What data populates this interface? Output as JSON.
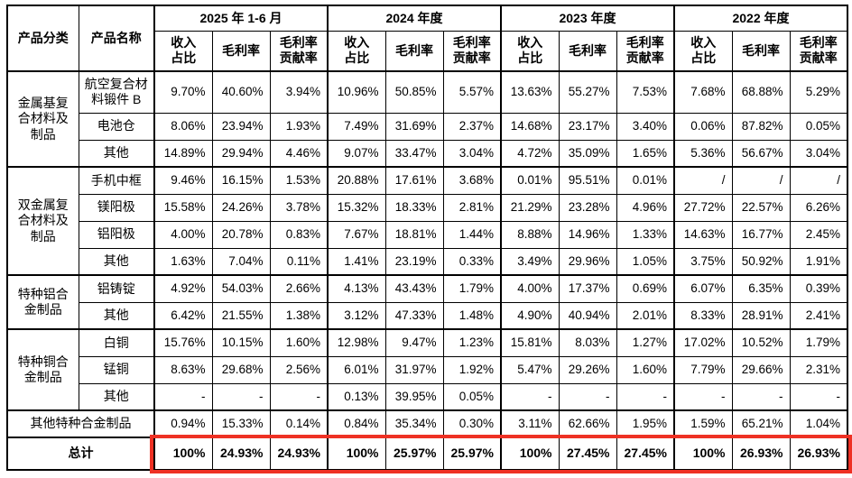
{
  "table": {
    "corner": {
      "category": "产品分类",
      "product": "产品名称"
    },
    "periods": [
      "2025 年 1-6 月",
      "2024 年度",
      "2023 年度",
      "2022 年度"
    ],
    "metrics": [
      "收入\n占比",
      "毛利率",
      "毛利率\n贡献率"
    ],
    "groups": [
      {
        "category": "金属基复\n合材料及\n制品",
        "rows": [
          {
            "name": "航空复合材\n料锻件 B",
            "values": [
              "9.70%",
              "40.60%",
              "3.94%",
              "10.96%",
              "50.85%",
              "5.57%",
              "13.63%",
              "55.27%",
              "7.53%",
              "7.68%",
              "68.88%",
              "5.29%"
            ]
          },
          {
            "name": "电池仓",
            "values": [
              "8.06%",
              "23.94%",
              "1.93%",
              "7.49%",
              "31.69%",
              "2.37%",
              "14.68%",
              "23.17%",
              "3.40%",
              "0.06%",
              "87.82%",
              "0.05%"
            ]
          },
          {
            "name": "其他",
            "values": [
              "14.89%",
              "29.94%",
              "4.46%",
              "9.07%",
              "33.47%",
              "3.04%",
              "4.72%",
              "35.09%",
              "1.65%",
              "5.36%",
              "56.67%",
              "3.04%"
            ]
          }
        ]
      },
      {
        "category": "双金属复\n合材料及\n制品",
        "rows": [
          {
            "name": "手机中框",
            "values": [
              "9.46%",
              "16.15%",
              "1.53%",
              "20.88%",
              "17.61%",
              "3.68%",
              "0.01%",
              "95.51%",
              "0.01%",
              "/",
              "/",
              "/"
            ]
          },
          {
            "name": "镁阳极",
            "values": [
              "15.58%",
              "24.26%",
              "3.78%",
              "15.32%",
              "18.33%",
              "2.81%",
              "21.29%",
              "23.28%",
              "4.96%",
              "27.72%",
              "22.57%",
              "6.26%"
            ]
          },
          {
            "name": "铝阳极",
            "values": [
              "4.00%",
              "20.78%",
              "0.83%",
              "7.67%",
              "18.81%",
              "1.44%",
              "8.88%",
              "14.96%",
              "1.33%",
              "14.63%",
              "16.77%",
              "2.45%"
            ]
          },
          {
            "name": "其他",
            "values": [
              "1.63%",
              "7.04%",
              "0.11%",
              "1.41%",
              "23.19%",
              "0.33%",
              "3.49%",
              "29.96%",
              "1.05%",
              "3.75%",
              "50.92%",
              "1.91%"
            ]
          }
        ]
      },
      {
        "category": "特种铝合\n金制品",
        "rows": [
          {
            "name": "铝铸锭",
            "values": [
              "4.92%",
              "54.03%",
              "2.66%",
              "4.13%",
              "43.43%",
              "1.79%",
              "4.00%",
              "17.37%",
              "0.69%",
              "6.07%",
              "6.35%",
              "0.39%"
            ]
          },
          {
            "name": "其他",
            "values": [
              "6.42%",
              "21.55%",
              "1.38%",
              "3.12%",
              "47.33%",
              "1.48%",
              "4.90%",
              "40.94%",
              "2.01%",
              "8.33%",
              "28.91%",
              "2.41%"
            ]
          }
        ]
      },
      {
        "category": "特种铜合\n金制品",
        "rows": [
          {
            "name": "白铜",
            "values": [
              "15.76%",
              "10.15%",
              "1.60%",
              "12.98%",
              "9.47%",
              "1.23%",
              "15.81%",
              "8.03%",
              "1.27%",
              "17.02%",
              "10.52%",
              "1.79%"
            ]
          },
          {
            "name": "锰铜",
            "values": [
              "8.63%",
              "29.68%",
              "2.56%",
              "6.01%",
              "31.97%",
              "1.92%",
              "5.47%",
              "29.26%",
              "1.60%",
              "7.79%",
              "29.66%",
              "2.31%"
            ]
          },
          {
            "name": "其他",
            "values": [
              "-",
              "-",
              "-",
              "0.13%",
              "39.95%",
              "0.05%",
              "-",
              "-",
              "-",
              "-",
              "-",
              "-"
            ]
          }
        ]
      }
    ],
    "merged_rows": [
      {
        "label": "其他特种合金制品",
        "total": false,
        "values": [
          "0.94%",
          "15.33%",
          "0.14%",
          "0.84%",
          "35.34%",
          "0.30%",
          "3.11%",
          "62.66%",
          "1.95%",
          "1.59%",
          "65.21%",
          "1.04%"
        ]
      },
      {
        "label": "总计",
        "total": true,
        "values": [
          "100%",
          "24.93%",
          "24.93%",
          "100%",
          "25.97%",
          "25.97%",
          "100%",
          "27.45%",
          "27.45%",
          "100%",
          "26.93%",
          "26.93%"
        ]
      }
    ],
    "highlight_color": "#ee3124"
  }
}
